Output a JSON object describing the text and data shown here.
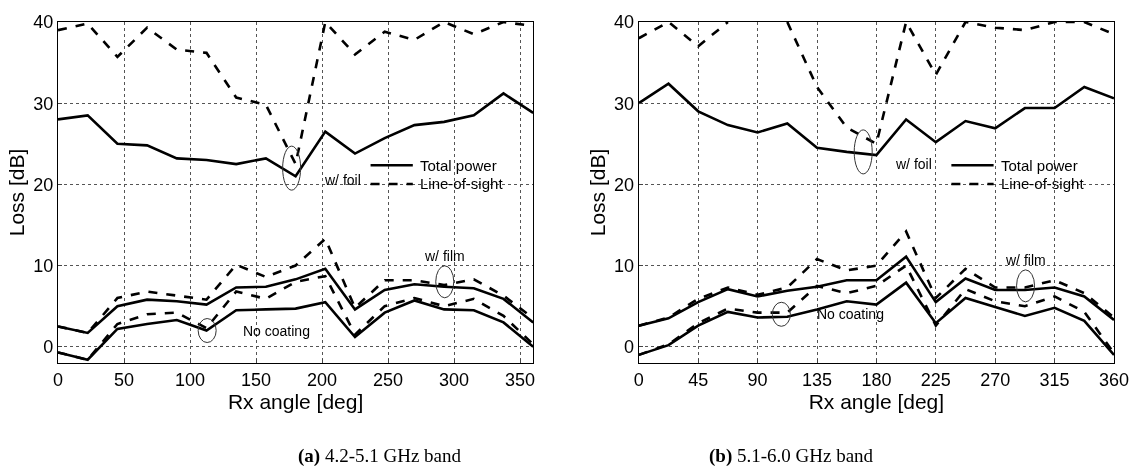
{
  "chart_data": [
    {
      "type": "line",
      "title": "(a) 4.2-5.1 GHz band",
      "xlabel": "Rx angle [deg]",
      "ylabel": "Loss [dB]",
      "x": [
        0,
        22.5,
        45,
        67.5,
        90,
        112.5,
        135,
        157.5,
        180,
        202.5,
        225,
        247.5,
        270,
        292.5,
        315,
        337.5,
        360
      ],
      "xlim": [
        0,
        360
      ],
      "xticks": [
        0,
        50,
        100,
        150,
        200,
        250,
        300,
        350
      ],
      "ylim": [
        -2,
        40
      ],
      "yticks": [
        0,
        10,
        20,
        30,
        40
      ],
      "grid": true,
      "legend": "right",
      "marker": "none",
      "series": [
        {
          "name": "Total power",
          "color": "#000000",
          "line_style": "solid",
          "values": [
            28,
            28.5,
            25,
            24.8,
            23.2,
            23,
            22.5,
            23.2,
            21,
            26.5,
            23.8,
            25.7,
            27.3,
            27.7,
            28.5,
            31.2,
            28.8
          ]
        },
        {
          "name": "Line-of-sight",
          "color": "#000000",
          "line_style": "dashed",
          "values": [
            39,
            39.8,
            35.7,
            39.3,
            36.6,
            36.2,
            30.7,
            29.8,
            22.5,
            40,
            36,
            38.8,
            37.8,
            40,
            38.5,
            40,
            39.5
          ]
        },
        {
          "color": "#000000",
          "line_style": "solid",
          "values": [
            2.5,
            1.7,
            5,
            5.8,
            5.6,
            5.2,
            7.3,
            7.4,
            8.3,
            9.6,
            4.6,
            7,
            7.7,
            7.4,
            7.2,
            5.9,
            3
          ]
        },
        {
          "color": "#000000",
          "line_style": "dashed",
          "values": [
            2.5,
            1.7,
            6,
            6.8,
            6.3,
            5.8,
            10.1,
            8.6,
            10,
            13.3,
            4.8,
            8.2,
            8.2,
            7.6,
            8.3,
            6.3,
            3.5
          ]
        },
        {
          "color": "#000000",
          "line_style": "solid",
          "values": [
            -0.7,
            -1.6,
            2.2,
            2.8,
            3.3,
            2,
            4.5,
            4.6,
            4.7,
            5.5,
            1.2,
            4.2,
            5.7,
            4.6,
            4.5,
            3,
            0
          ]
        },
        {
          "color": "#000000",
          "line_style": "dashed",
          "values": [
            -0.7,
            -1.6,
            2.8,
            4,
            4.2,
            2.3,
            6.8,
            5.9,
            8,
            8.7,
            1.5,
            5,
            6,
            5,
            5.9,
            3.8,
            0.3
          ]
        }
      ],
      "annotations": [
        {
          "text": "w/ foil",
          "x": 177,
          "y": 22
        },
        {
          "text": "w/ film",
          "x": 293,
          "y": 8
        },
        {
          "text": "No coating",
          "x": 113,
          "y": 2
        }
      ]
    },
    {
      "type": "line",
      "title": "(b) 5.1-6.0 GHz band",
      "xlabel": "Rx angle [deg]",
      "ylabel": "Loss [dB]",
      "x": [
        0,
        22.5,
        45,
        67.5,
        90,
        112.5,
        135,
        157.5,
        180,
        202.5,
        225,
        247.5,
        270,
        292.5,
        315,
        337.5,
        360
      ],
      "xlim": [
        0,
        360
      ],
      "xticks": [
        0,
        45,
        90,
        135,
        180,
        225,
        270,
        315,
        360
      ],
      "ylim": [
        -2,
        40
      ],
      "yticks": [
        0,
        10,
        20,
        30,
        40
      ],
      "grid": true,
      "legend": "right",
      "marker": "none",
      "series": [
        {
          "name": "Total power",
          "color": "#000000",
          "line_style": "solid",
          "values": [
            30,
            32.4,
            29,
            27.3,
            26.4,
            27.5,
            24.5,
            24,
            23.6,
            28,
            25.2,
            27.8,
            26.9,
            29.4,
            29.4,
            32,
            30.6
          ]
        },
        {
          "name": "Line-of-sight",
          "color": "#000000",
          "line_style": "dashed",
          "values": [
            38,
            40,
            37,
            40,
            null,
            40,
            32,
            27,
            25,
            40,
            33.5,
            40,
            39.3,
            39,
            40,
            40,
            38.5
          ]
        },
        {
          "color": "#000000",
          "line_style": "solid",
          "values": [
            2.6,
            3.5,
            5.5,
            7.1,
            6.2,
            6.9,
            7.4,
            8.2,
            8.2,
            11.1,
            5.5,
            8.4,
            7,
            7,
            7.3,
            6.2,
            3.3
          ]
        },
        {
          "color": "#000000",
          "line_style": "dashed",
          "values": [
            2.6,
            3.6,
            5.9,
            7.3,
            6.4,
            7.3,
            10.8,
            9.4,
            10,
            14.2,
            6,
            9.6,
            7.3,
            7.3,
            8.2,
            6.6,
            3.6
          ]
        },
        {
          "color": "#000000",
          "line_style": "solid",
          "values": [
            -1,
            0.2,
            2.6,
            4.3,
            3.6,
            3.7,
            4.6,
            5.6,
            5.2,
            7.9,
            2.9,
            6,
            4.9,
            3.8,
            4.8,
            3.2,
            -1
          ]
        },
        {
          "color": "#000000",
          "line_style": "dashed",
          "values": [
            -1,
            0.3,
            2.9,
            4.7,
            4.2,
            4.2,
            7.5,
            6.6,
            7.5,
            10,
            2.6,
            7.1,
            5.6,
            5,
            6.2,
            4.3,
            -0.8
          ]
        }
      ],
      "annotations": [
        {
          "text": "w/ foil",
          "x": 170,
          "y": 24
        },
        {
          "text": "w/ film",
          "x": 293,
          "y": 7.5
        },
        {
          "text": "No coating",
          "x": 108,
          "y": 4
        }
      ]
    }
  ]
}
